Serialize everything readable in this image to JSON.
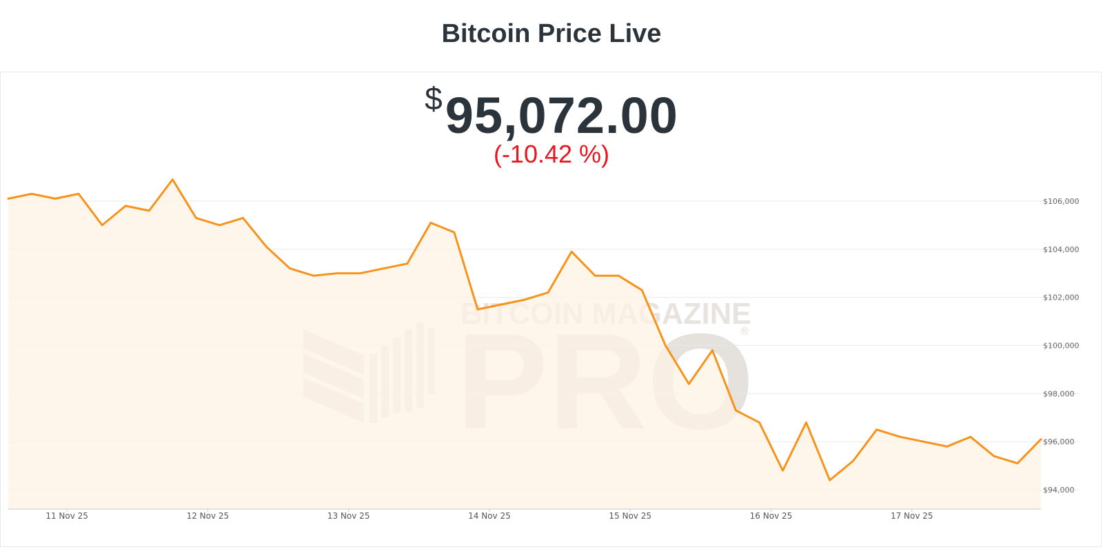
{
  "header": {
    "title": "Bitcoin Price Live"
  },
  "price": {
    "currency_symbol": "$",
    "value": "95,072.00",
    "change": "(-10.42 %)"
  },
  "watermark": {
    "line1": "BITCOIN MAGAZINE",
    "line2": "PRO",
    "mark": "®"
  },
  "colors": {
    "line": "#f7931a",
    "area": "#fdf2e4",
    "negative": "#e8141e",
    "grid": "#e9e9e9"
  },
  "chart_data": {
    "type": "area",
    "title": "",
    "xlabel": "",
    "ylabel": "",
    "ylim": [
      93200,
      107000
    ],
    "xlim": [
      "2025-11-10 14:00",
      "2025-11-17 22:00"
    ],
    "grid": true,
    "legend": "none",
    "x_ticks": [
      "11 Nov 25",
      "12 Nov 25",
      "13 Nov 25",
      "14 Nov 25",
      "15 Nov 25",
      "16 Nov 25",
      "17 Nov 25"
    ],
    "y_ticks": [
      "$94,000",
      "$96,000",
      "$98,000",
      "$100,000",
      "$102,000",
      "$104,000",
      "$106,000"
    ],
    "series": [
      {
        "x": [
          "2025-11-10 14:00",
          "2025-11-10 18:00",
          "2025-11-10 22:00",
          "2025-11-11 02:00",
          "2025-11-11 06:00",
          "2025-11-11 10:00",
          "2025-11-11 14:00",
          "2025-11-11 18:00",
          "2025-11-11 22:00",
          "2025-11-12 02:00",
          "2025-11-12 06:00",
          "2025-11-12 10:00",
          "2025-11-12 14:00",
          "2025-11-12 18:00",
          "2025-11-12 22:00",
          "2025-11-13 02:00",
          "2025-11-13 06:00",
          "2025-11-13 10:00",
          "2025-11-13 14:00",
          "2025-11-13 18:00",
          "2025-11-13 22:00",
          "2025-11-14 02:00",
          "2025-11-14 06:00",
          "2025-11-14 10:00",
          "2025-11-14 14:00",
          "2025-11-14 18:00",
          "2025-11-14 22:00",
          "2025-11-15 02:00",
          "2025-11-15 06:00",
          "2025-11-15 10:00",
          "2025-11-15 14:00",
          "2025-11-15 18:00",
          "2025-11-15 22:00",
          "2025-11-16 02:00",
          "2025-11-16 06:00",
          "2025-11-16 10:00",
          "2025-11-16 14:00",
          "2025-11-16 18:00",
          "2025-11-16 22:00",
          "2025-11-17 02:00",
          "2025-11-17 06:00",
          "2025-11-17 10:00",
          "2025-11-17 14:00",
          "2025-11-17 18:00",
          "2025-11-17 22:00"
        ],
        "values": [
          106100,
          106300,
          106100,
          106300,
          105000,
          105800,
          105600,
          106900,
          105300,
          105000,
          105300,
          104100,
          103200,
          102900,
          103000,
          103000,
          103200,
          103400,
          105100,
          104700,
          101500,
          101700,
          101900,
          102200,
          103900,
          102900,
          102900,
          102300,
          100000,
          98400,
          99800,
          97300,
          96800,
          94800,
          96800,
          94400,
          95200,
          96500,
          96200,
          96000,
          95800,
          96200,
          95400,
          95100,
          96100
        ]
      }
    ]
  }
}
